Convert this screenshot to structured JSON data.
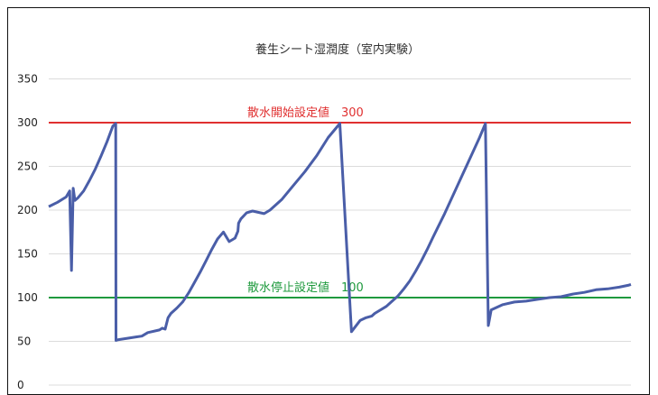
{
  "chart_data": {
    "type": "line",
    "title": "養生シート湿潤度（室内実験）",
    "ylim": [
      0,
      350
    ],
    "yticks": [
      "0",
      "50",
      "100",
      "150",
      "200",
      "250",
      "300",
      "350"
    ],
    "grid": true,
    "series": [
      {
        "color": "#4a5ea8",
        "x": [
          0,
          1.5,
          3,
          3.6,
          3.9,
          4.2,
          4.5,
          5,
          6,
          7,
          8,
          9,
          10,
          11,
          11.5,
          11.55,
          12,
          15,
          16,
          17,
          19,
          19.5,
          20,
          20.5,
          21,
          22,
          23,
          24,
          25,
          26,
          27,
          28,
          29,
          30,
          31,
          32,
          32.5,
          32.6,
          33,
          34,
          35,
          37,
          38,
          40,
          42,
          44,
          46,
          48,
          50,
          52,
          53.5,
          54.5,
          55.5,
          56,
          57,
          58,
          59,
          60,
          61,
          62,
          63,
          64,
          65,
          66,
          68,
          70,
          72,
          74,
          75,
          75.5,
          76,
          78,
          80,
          82,
          84,
          86,
          88,
          90,
          92,
          94,
          96,
          98,
          99.5,
          100
        ],
        "values": [
          204,
          209,
          215,
          222,
          131,
          225,
          211,
          214,
          222,
          234,
          247,
          262,
          278,
          296,
          299,
          51,
          52,
          55,
          56,
          60,
          63,
          65,
          64,
          77,
          82,
          88,
          95,
          105,
          117,
          129,
          142,
          155,
          167,
          175,
          164,
          168,
          176,
          185,
          190,
          197,
          199,
          196,
          200,
          212,
          228,
          244,
          262,
          283,
          299,
          61,
          74,
          77,
          79,
          82,
          86,
          90,
          96,
          102,
          110,
          119,
          130,
          142,
          155,
          169,
          196,
          225,
          254,
          283,
          299,
          68,
          86,
          92,
          95,
          96,
          98,
          100,
          101,
          104,
          106,
          109,
          110,
          112,
          114,
          115
        ],
        "xlim": [
          0,
          100
        ]
      }
    ],
    "reference_lines": [
      {
        "value": 300,
        "label": "散水開始設定値　300",
        "color": "#e03030"
      },
      {
        "value": 100,
        "label": "散水停止設定値　100",
        "color": "#1f9a3e"
      }
    ]
  }
}
